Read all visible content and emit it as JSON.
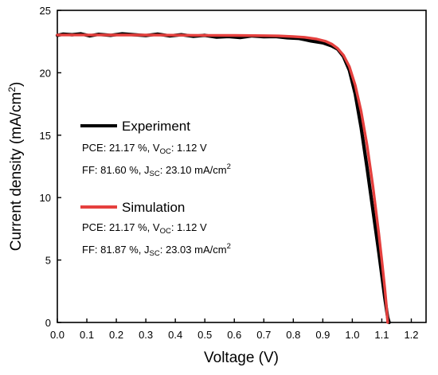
{
  "chart_data": {
    "type": "line",
    "xlabel": "Voltage (V)",
    "ylabel_main": "Current density (mA/cm",
    "ylabel_sup": "2",
    "ylabel_tail": ")",
    "xlim": [
      0.0,
      1.25
    ],
    "ylim": [
      0,
      25
    ],
    "x_ticks": [
      "0.0",
      "0.1",
      "0.2",
      "0.3",
      "0.4",
      "0.5",
      "0.6",
      "0.7",
      "0.8",
      "0.9",
      "1.0",
      "1.1",
      "1.2"
    ],
    "x_tick_values": [
      0.0,
      0.1,
      0.2,
      0.3,
      0.4,
      0.5,
      0.6,
      0.7,
      0.8,
      0.9,
      1.0,
      1.1,
      1.2
    ],
    "y_ticks": [
      "0",
      "5",
      "10",
      "15",
      "20",
      "25"
    ],
    "y_tick_values": [
      0,
      5,
      10,
      15,
      20,
      25
    ],
    "grid": false,
    "legend_position": "middle-left",
    "series": [
      {
        "name": "Experiment",
        "color": "#000000",
        "stats": [
          {
            "pre": "PCE: 21.17 %, V",
            "sub": "OC",
            "post": ": 1.12 V",
            "sup": ""
          },
          {
            "pre": "FF: 81.60 %, J",
            "sub": "SC",
            "post": ": 23.10 mA/cm",
            "sup": "2"
          }
        ],
        "x": [
          0.0,
          0.02,
          0.05,
          0.08,
          0.11,
          0.14,
          0.18,
          0.22,
          0.26,
          0.3,
          0.34,
          0.38,
          0.42,
          0.46,
          0.5,
          0.54,
          0.58,
          0.62,
          0.66,
          0.7,
          0.74,
          0.78,
          0.82,
          0.86,
          0.9,
          0.93,
          0.95,
          0.97,
          0.99,
          1.01,
          1.03,
          1.05,
          1.07,
          1.09,
          1.1,
          1.11,
          1.12,
          1.125
        ],
        "y": [
          23.0,
          23.1,
          23.05,
          23.12,
          22.95,
          23.08,
          23.0,
          23.12,
          23.05,
          22.98,
          23.1,
          22.95,
          23.05,
          22.92,
          23.0,
          22.85,
          22.9,
          22.82,
          22.95,
          22.88,
          22.9,
          22.8,
          22.75,
          22.55,
          22.4,
          22.15,
          21.9,
          21.3,
          20.2,
          18.3,
          15.6,
          12.4,
          9.0,
          5.6,
          3.8,
          2.0,
          0.4,
          0.0
        ]
      },
      {
        "name": "Simulation",
        "color": "#e5403e",
        "stats": [
          {
            "pre": "PCE: 21.17 %, V",
            "sub": "OC",
            "post": ": 1.12 V",
            "sup": ""
          },
          {
            "pre": "FF: 81.87 %, J",
            "sub": "SC",
            "post": ": 23.03 mA/cm",
            "sup": "2"
          }
        ],
        "x": [
          0.0,
          0.1,
          0.2,
          0.3,
          0.4,
          0.5,
          0.6,
          0.7,
          0.75,
          0.8,
          0.84,
          0.88,
          0.91,
          0.93,
          0.95,
          0.97,
          0.99,
          1.01,
          1.03,
          1.05,
          1.07,
          1.09,
          1.1,
          1.11,
          1.115,
          1.12
        ],
        "y": [
          23.03,
          23.03,
          23.02,
          23.02,
          23.01,
          23.0,
          22.99,
          22.97,
          22.95,
          22.9,
          22.84,
          22.7,
          22.52,
          22.3,
          21.95,
          21.4,
          20.5,
          19.0,
          16.9,
          14.2,
          10.9,
          7.1,
          5.0,
          2.8,
          1.5,
          0.0
        ]
      }
    ]
  }
}
